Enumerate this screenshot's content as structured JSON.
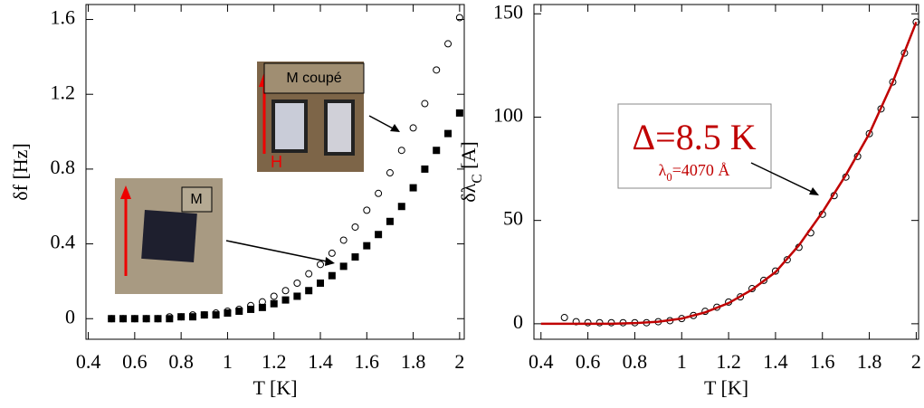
{
  "chart_data": [
    {
      "type": "scatter",
      "x_label": "T [K]",
      "y_label": "δf [Hz]",
      "xlim": [
        0.39,
        2.02
      ],
      "ylim": [
        -0.11,
        1.68
      ],
      "xticks": [
        0.4,
        0.6,
        0.8,
        1,
        1.2,
        1.4,
        1.6,
        1.8,
        2
      ],
      "yticks": [
        0,
        0.4,
        0.8,
        1.2,
        1.6
      ],
      "x": [
        0.5,
        0.55,
        0.6,
        0.65,
        0.7,
        0.75,
        0.8,
        0.85,
        0.9,
        0.95,
        1.0,
        1.05,
        1.1,
        1.15,
        1.2,
        1.25,
        1.3,
        1.35,
        1.4,
        1.45,
        1.5,
        1.55,
        1.6,
        1.65,
        1.7,
        1.75,
        1.8,
        1.85,
        1.9,
        1.95,
        2.0
      ],
      "series": [
        {
          "color": "#000000",
          "marker": "square",
          "values": [
            0,
            0,
            0,
            0,
            0,
            0,
            0.01,
            0.01,
            0.02,
            0.02,
            0.03,
            0.04,
            0.05,
            0.06,
            0.08,
            0.1,
            0.12,
            0.15,
            0.19,
            0.23,
            0.28,
            0.33,
            0.39,
            0.45,
            0.52,
            0.6,
            0.7,
            0.8,
            0.9,
            0.99,
            1.1
          ]
        },
        {
          "color": "#000000",
          "marker": "circle",
          "values": [
            0,
            0,
            0,
            0,
            0,
            0.01,
            0.01,
            0.02,
            0.02,
            0.03,
            0.04,
            0.05,
            0.07,
            0.09,
            0.12,
            0.15,
            0.19,
            0.24,
            0.29,
            0.35,
            0.42,
            0.49,
            0.58,
            0.67,
            0.78,
            0.9,
            1.02,
            1.15,
            1.33,
            1.47,
            1.61
          ]
        }
      ],
      "annotations": [
        {
          "text": "M coupé"
        },
        {
          "text": "H"
        },
        {
          "text": "M"
        },
        {
          "text": "H"
        }
      ]
    },
    {
      "type": "scatter",
      "x_label": "T [K]",
      "y_label": [
        "δλ",
        "C",
        " [A]"
      ],
      "xlim": [
        0.37,
        2.01
      ],
      "ylim": [
        -7.5,
        154.5
      ],
      "xticks": [
        0.4,
        0.6,
        0.8,
        1,
        1.2,
        1.4,
        1.6,
        1.8,
        2
      ],
      "yticks": [
        0,
        50,
        100,
        150
      ],
      "x": [
        0.5,
        0.55,
        0.6,
        0.65,
        0.7,
        0.75,
        0.8,
        0.85,
        0.9,
        0.95,
        1.0,
        1.05,
        1.1,
        1.15,
        1.2,
        1.25,
        1.3,
        1.35,
        1.4,
        1.45,
        1.5,
        1.55,
        1.6,
        1.65,
        1.7,
        1.75,
        1.8,
        1.85,
        1.9,
        1.95,
        2.0
      ],
      "series": [
        {
          "color": "#000000",
          "marker": "circle",
          "values": [
            3,
            1,
            0.5,
            0.5,
            0.5,
            0.5,
            0.5,
            0.5,
            1,
            1.5,
            2.5,
            4,
            6,
            8,
            10.5,
            13,
            17,
            21,
            25.5,
            31,
            37,
            44,
            53,
            62,
            71,
            81,
            92,
            104,
            117,
            131,
            146
          ]
        },
        {
          "color": "#c00000",
          "marker": "line",
          "x": [
            0.4,
            0.5,
            0.6,
            0.7,
            0.8,
            0.9,
            1.0,
            1.1,
            1.2,
            1.3,
            1.4,
            1.5,
            1.6,
            1.7,
            1.8,
            1.9,
            2.0
          ],
          "values": [
            0,
            0,
            0,
            0,
            0.3,
            1,
            2.5,
            5.5,
            10,
            16.5,
            25,
            38,
            54,
            72,
            92,
            117,
            146
          ]
        }
      ],
      "annotations": [
        {
          "text": "Δ=8.5 K"
        },
        {
          "text": [
            "λ",
            "0",
            "=4070 Å"
          ]
        }
      ]
    }
  ]
}
